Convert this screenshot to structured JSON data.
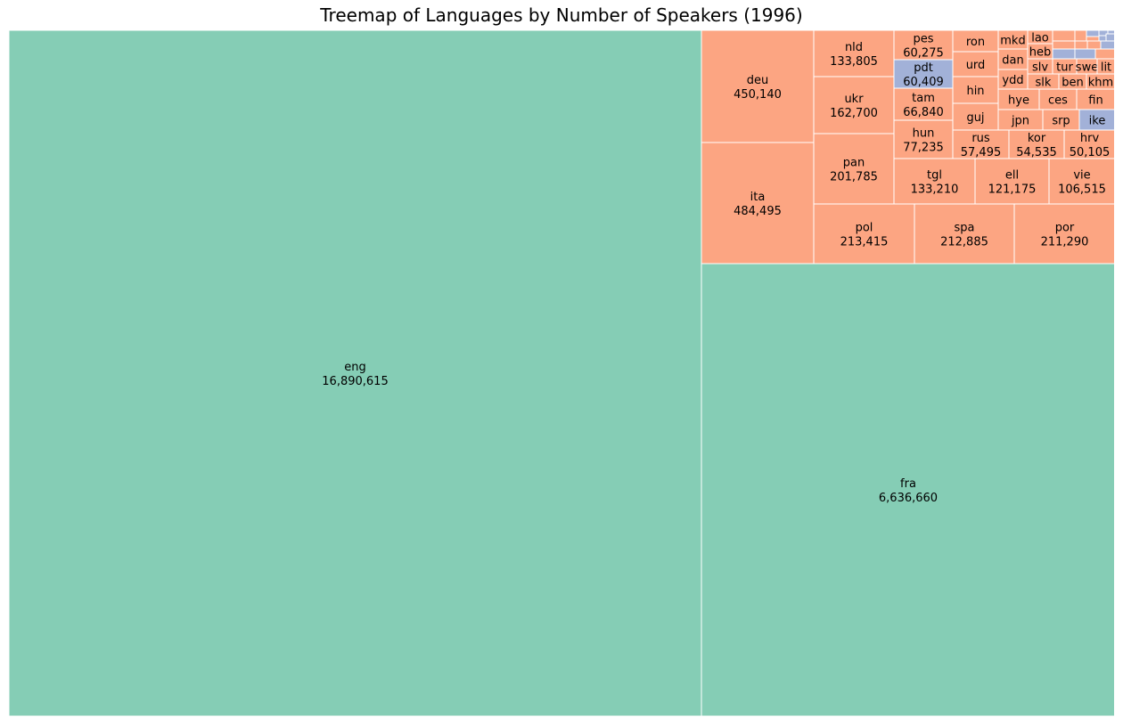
{
  "chart_data": {
    "type": "treemap",
    "title": "Treemap of Languages by Number of Speakers (1996)",
    "colors": {
      "green": "#85cdb5",
      "orange": "#fca582",
      "blue": "#a2b1d8",
      "border": "#ffffff"
    },
    "items": [
      {
        "label": "eng",
        "value": 16890615,
        "value_text": "16,890,615",
        "color": "green"
      },
      {
        "label": "fra",
        "value": 6636660,
        "value_text": "6,636,660",
        "color": "green"
      },
      {
        "label": "deu",
        "value": 450140,
        "value_text": "450,140",
        "color": "orange"
      },
      {
        "label": "ita",
        "value": 484495,
        "value_text": "484,495",
        "color": "orange"
      },
      {
        "label": "nld",
        "value": 133805,
        "value_text": "133,805",
        "color": "orange"
      },
      {
        "label": "ukr",
        "value": 162700,
        "value_text": "162,700",
        "color": "orange"
      },
      {
        "label": "pan",
        "value": 201785,
        "value_text": "201,785",
        "color": "orange"
      },
      {
        "label": "pes",
        "value": 60275,
        "value_text": "60,275",
        "color": "orange"
      },
      {
        "label": "pdt",
        "value": 60409,
        "value_text": "60,409",
        "color": "blue"
      },
      {
        "label": "tam",
        "value": 66840,
        "value_text": "66,840",
        "color": "orange"
      },
      {
        "label": "hun",
        "value": 77235,
        "value_text": "77,235",
        "color": "orange"
      },
      {
        "label": "ron",
        "value": null,
        "value_text": "",
        "color": "orange"
      },
      {
        "label": "urd",
        "value": null,
        "value_text": "",
        "color": "orange"
      },
      {
        "label": "hin",
        "value": null,
        "value_text": "",
        "color": "orange"
      },
      {
        "label": "guj",
        "value": null,
        "value_text": "",
        "color": "orange"
      },
      {
        "label": "mkd",
        "value": null,
        "value_text": "",
        "color": "orange"
      },
      {
        "label": "dan",
        "value": null,
        "value_text": "",
        "color": "orange"
      },
      {
        "label": "ydd",
        "value": null,
        "value_text": "",
        "color": "orange"
      },
      {
        "label": "lao",
        "value": null,
        "value_text": "",
        "color": "orange"
      },
      {
        "label": "heb",
        "value": null,
        "value_text": "",
        "color": "orange"
      },
      {
        "label": "slv",
        "value": null,
        "value_text": "",
        "color": "orange"
      },
      {
        "label": "tur",
        "value": null,
        "value_text": "",
        "color": "orange"
      },
      {
        "label": "swe",
        "value": null,
        "value_text": "",
        "color": "orange"
      },
      {
        "label": "lit",
        "value": null,
        "value_text": "",
        "color": "orange"
      },
      {
        "label": "slk",
        "value": null,
        "value_text": "",
        "color": "orange"
      },
      {
        "label": "ben",
        "value": null,
        "value_text": "",
        "color": "orange"
      },
      {
        "label": "khm",
        "value": null,
        "value_text": "",
        "color": "orange"
      },
      {
        "label": "hye",
        "value": null,
        "value_text": "",
        "color": "orange"
      },
      {
        "label": "ces",
        "value": null,
        "value_text": "",
        "color": "orange"
      },
      {
        "label": "fin",
        "value": null,
        "value_text": "",
        "color": "orange"
      },
      {
        "label": "jpn",
        "value": null,
        "value_text": "",
        "color": "orange"
      },
      {
        "label": "srp",
        "value": null,
        "value_text": "",
        "color": "orange"
      },
      {
        "label": "ike",
        "value": null,
        "value_text": "",
        "color": "blue"
      },
      {
        "label": "rus",
        "value": 57495,
        "value_text": "57,495",
        "color": "orange"
      },
      {
        "label": "kor",
        "value": 54535,
        "value_text": "54,535",
        "color": "orange"
      },
      {
        "label": "hrv",
        "value": 50105,
        "value_text": "50,105",
        "color": "orange"
      },
      {
        "label": "tgl",
        "value": 133210,
        "value_text": "133,210",
        "color": "orange"
      },
      {
        "label": "ell",
        "value": 121175,
        "value_text": "121,175",
        "color": "orange"
      },
      {
        "label": "vie",
        "value": 106515,
        "value_text": "106,515",
        "color": "orange"
      },
      {
        "label": "pol",
        "value": 213415,
        "value_text": "213,415",
        "color": "orange"
      },
      {
        "label": "spa",
        "value": 212885,
        "value_text": "212,885",
        "color": "orange"
      },
      {
        "label": "por",
        "value": 211290,
        "value_text": "211,290",
        "color": "orange"
      }
    ]
  }
}
